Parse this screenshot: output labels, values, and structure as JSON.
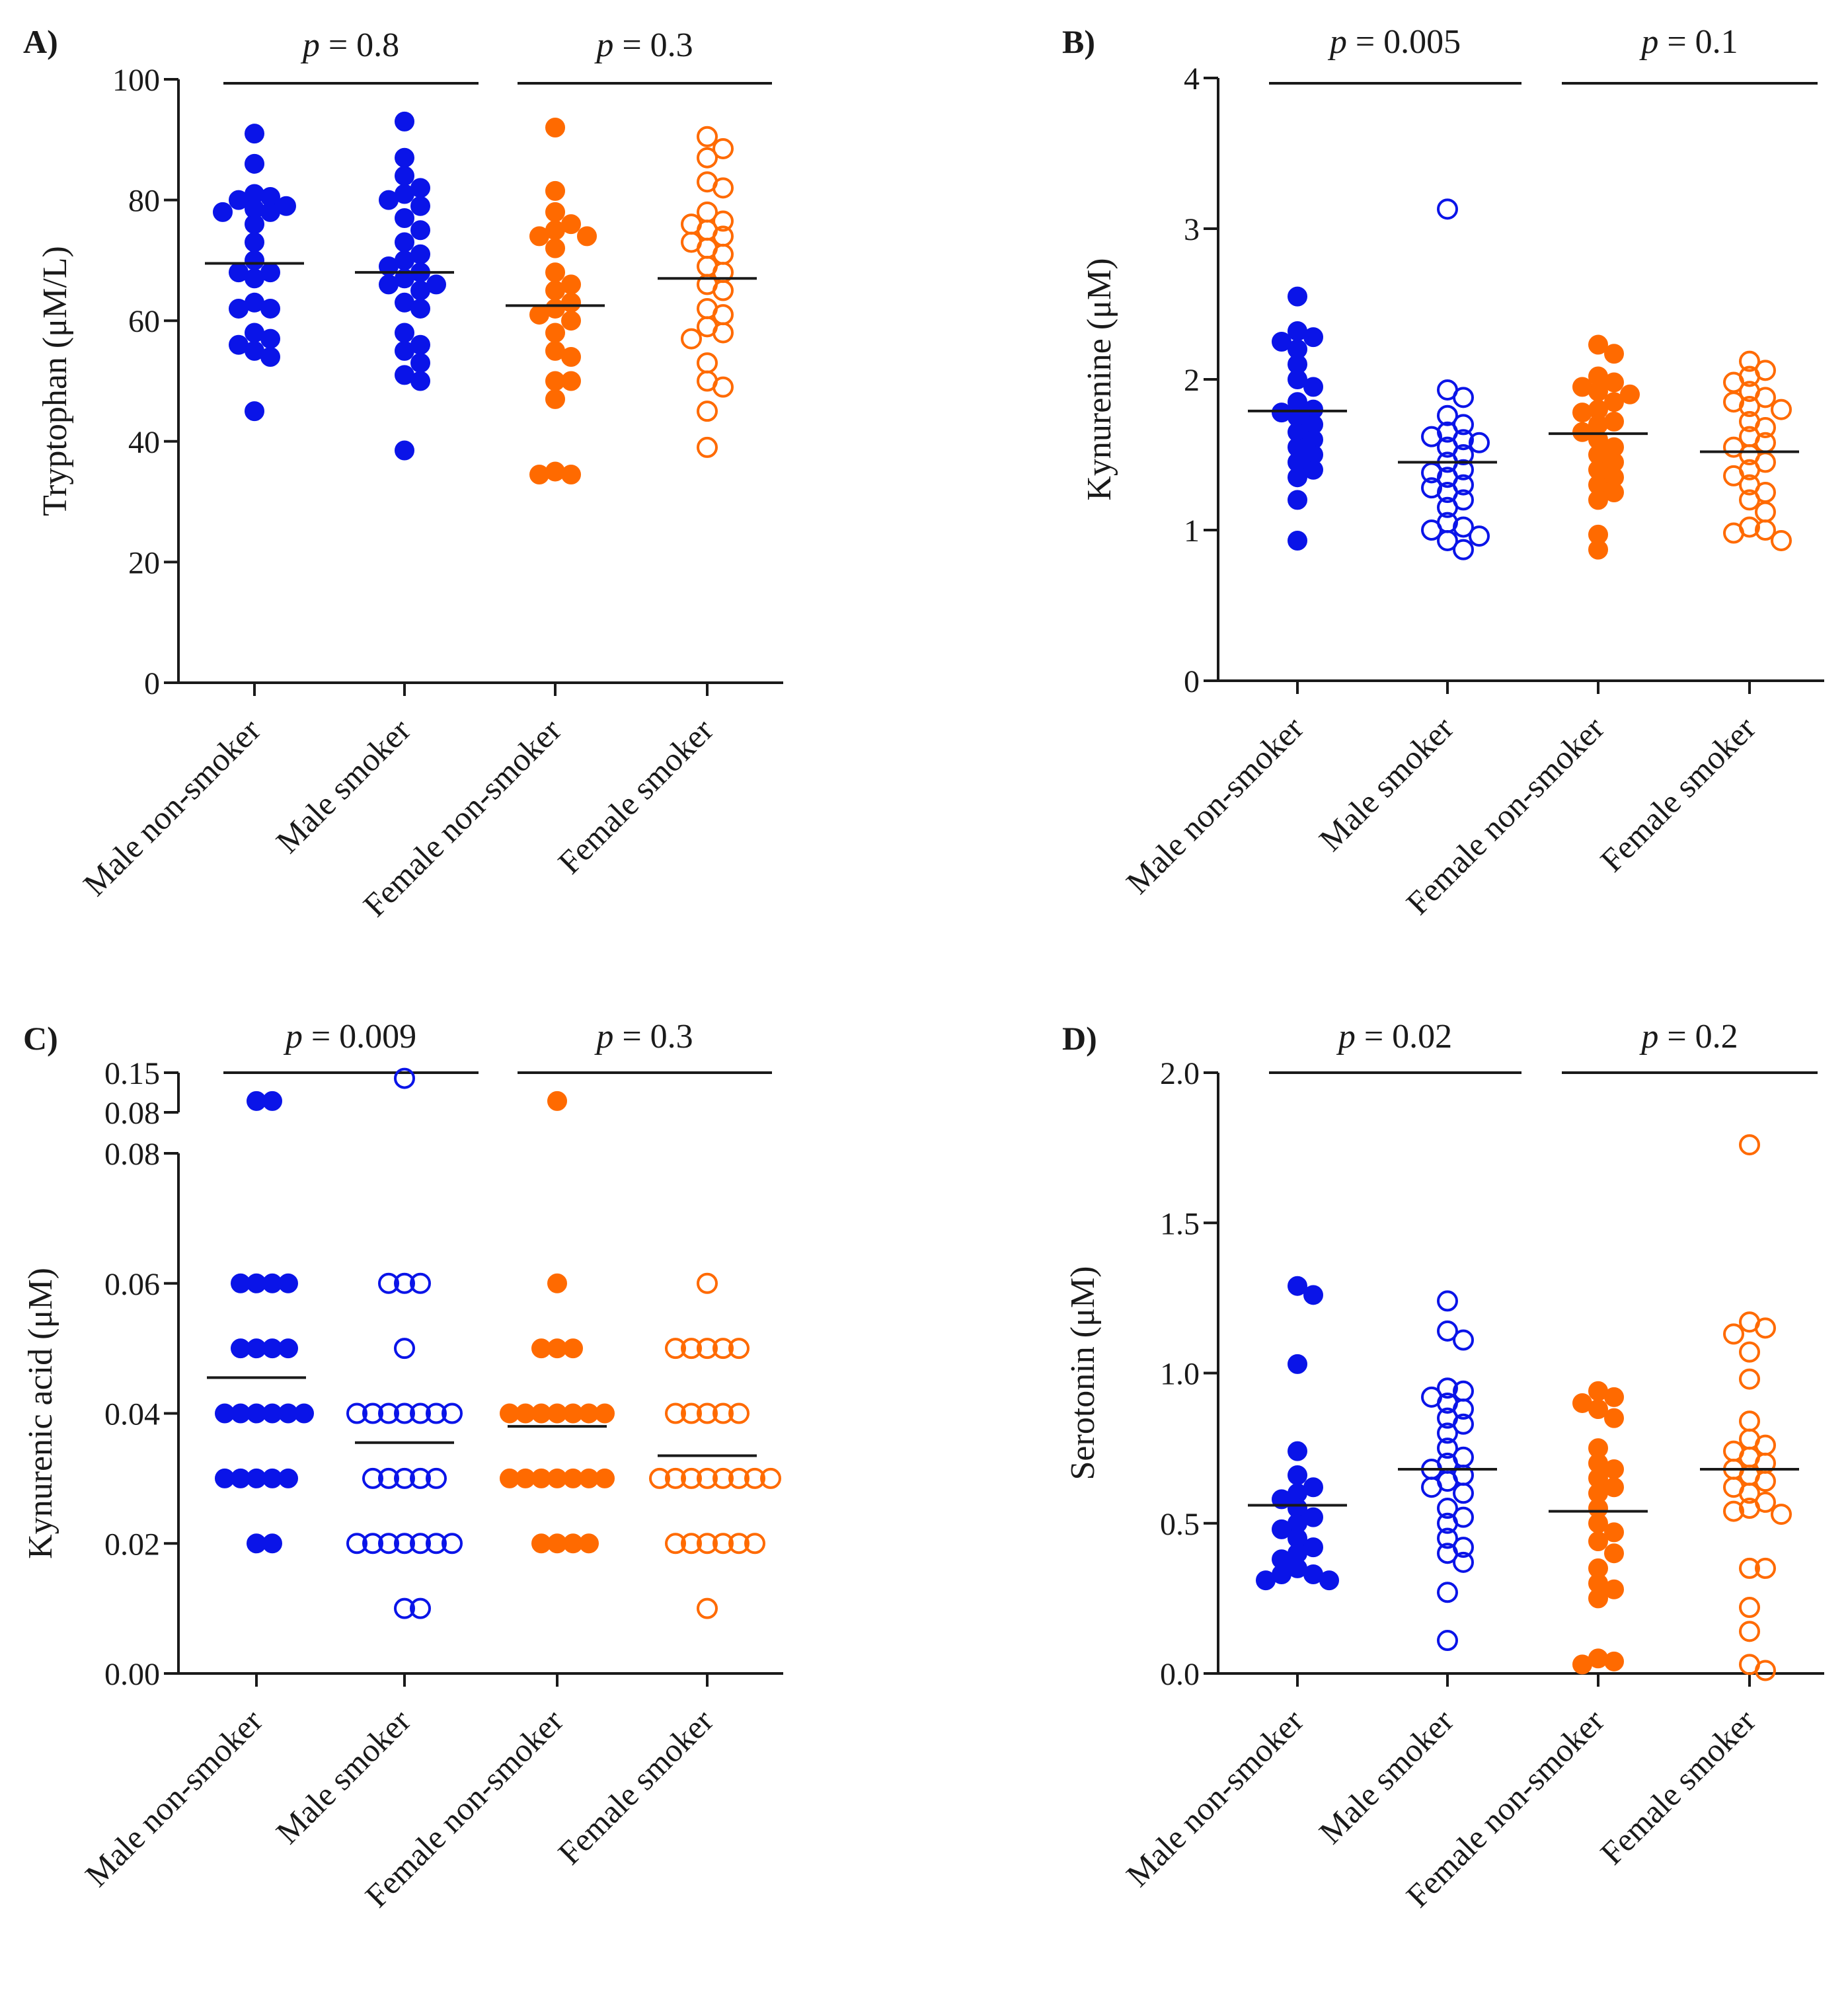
{
  "colors": {
    "blue": "#0a14e8",
    "orange": "#ff6a00",
    "black": "#1a1a1a"
  },
  "chart_data": [
    {
      "type": "scatter",
      "panel_label": "A)",
      "ylabel": "Tryptophan  (μM/L)",
      "ylim": [
        0,
        100
      ],
      "yticks": [
        0,
        20,
        40,
        60,
        80,
        100
      ],
      "ytick_labels": [
        "0",
        "20",
        "40",
        "60",
        "80",
        "100"
      ],
      "categories": [
        "Male non-smoker",
        "Male smoker",
        "Female non-smoker",
        "Female smoker"
      ],
      "comparisons": [
        {
          "p_symbol": "p",
          "p_rest": " = 0.8",
          "groups": [
            0,
            1
          ]
        },
        {
          "p_symbol": "p",
          "p_rest": " = 0.3",
          "groups": [
            2,
            3
          ]
        }
      ],
      "series": [
        {
          "name": "Male non-smoker",
          "color": "blue",
          "filled": true,
          "mean": 69.5,
          "points": [
            91,
            86,
            81,
            80.5,
            80,
            79,
            78.5,
            78,
            78,
            76,
            73,
            70,
            68,
            68,
            67,
            63,
            62,
            62,
            58,
            57,
            56,
            55,
            54,
            45
          ]
        },
        {
          "name": "Male smoker",
          "color": "blue",
          "filled": true,
          "mean": 68,
          "points": [
            93,
            87,
            84,
            82,
            81,
            80,
            79,
            77,
            75,
            73,
            71,
            70,
            69,
            68,
            67,
            66,
            66,
            65,
            63,
            62,
            58,
            56,
            55,
            53,
            51,
            50,
            38.5
          ]
        },
        {
          "name": "Female non-smoker",
          "color": "orange",
          "filled": true,
          "mean": 62.5,
          "points": [
            92,
            81.5,
            78,
            76,
            75,
            74,
            74,
            72,
            68,
            66,
            65,
            63,
            62,
            61,
            60,
            58,
            55,
            54,
            50,
            50,
            47,
            35,
            34.5,
            34.5
          ]
        },
        {
          "name": "Female smoker",
          "color": "orange",
          "filled": false,
          "mean": 67,
          "points": [
            90.5,
            88.5,
            87,
            83,
            82,
            78,
            76.5,
            76,
            75,
            74,
            73,
            72,
            71,
            69,
            68,
            66,
            65,
            62,
            61,
            59,
            58,
            57,
            53,
            50,
            49,
            45,
            39
          ]
        }
      ]
    },
    {
      "type": "scatter",
      "panel_label": "B)",
      "ylabel": "Kynurenine (μM)",
      "ylim": [
        0,
        4
      ],
      "yticks": [
        0,
        1,
        2,
        3,
        4
      ],
      "ytick_labels": [
        "0",
        "1",
        "2",
        "3",
        "4"
      ],
      "categories": [
        "Male non-smoker",
        "Male smoker",
        "Female non-smoker",
        "Female smoker"
      ],
      "comparisons": [
        {
          "p_symbol": "p",
          "p_rest": " = 0.005",
          "groups": [
            0,
            1
          ]
        },
        {
          "p_symbol": "p",
          "p_rest": " = 0.1",
          "groups": [
            2,
            3
          ]
        }
      ],
      "series": [
        {
          "name": "Male non-smoker",
          "color": "blue",
          "filled": true,
          "mean": 1.79,
          "points": [
            2.55,
            2.32,
            2.28,
            2.25,
            2.2,
            2.1,
            2.0,
            1.95,
            1.85,
            1.8,
            1.78,
            1.75,
            1.7,
            1.65,
            1.6,
            1.55,
            1.5,
            1.45,
            1.4,
            1.35,
            1.2,
            0.93
          ]
        },
        {
          "name": "Male smoker",
          "color": "blue",
          "filled": false,
          "mean": 1.45,
          "points": [
            3.13,
            1.93,
            1.88,
            1.76,
            1.7,
            1.65,
            1.62,
            1.6,
            1.58,
            1.55,
            1.5,
            1.45,
            1.4,
            1.38,
            1.35,
            1.3,
            1.28,
            1.25,
            1.2,
            1.15,
            1.05,
            1.02,
            1.0,
            0.96,
            0.93,
            0.87
          ]
        },
        {
          "name": "Female non-smoker",
          "color": "orange",
          "filled": true,
          "mean": 1.64,
          "points": [
            2.23,
            2.17,
            2.02,
            1.98,
            1.95,
            1.92,
            1.9,
            1.85,
            1.8,
            1.78,
            1.72,
            1.7,
            1.65,
            1.6,
            1.55,
            1.5,
            1.45,
            1.4,
            1.35,
            1.3,
            1.25,
            1.2,
            0.97,
            0.87
          ]
        },
        {
          "name": "Female smoker",
          "color": "orange",
          "filled": false,
          "mean": 1.52,
          "points": [
            2.12,
            2.06,
            2.02,
            1.98,
            1.92,
            1.88,
            1.85,
            1.82,
            1.8,
            1.72,
            1.68,
            1.62,
            1.58,
            1.55,
            1.5,
            1.45,
            1.4,
            1.36,
            1.3,
            1.25,
            1.2,
            1.12,
            1.02,
            1.0,
            0.98,
            0.93
          ]
        }
      ]
    },
    {
      "type": "scatter",
      "panel_label": "C)",
      "ylabel": "Kynurenic acid (μM)",
      "ylim": [
        0,
        0.08
      ],
      "axis_break": {
        "upper_range": [
          0.08,
          0.15
        ],
        "upper_tick_labels": [
          "0.08",
          "0.15"
        ]
      },
      "yticks": [
        0,
        0.02,
        0.04,
        0.06,
        0.08
      ],
      "ytick_labels": [
        "0.00",
        "0.02",
        "0.04",
        "0.06",
        "0.08"
      ],
      "categories": [
        "Male non-smoker",
        "Male smoker",
        "Female non-smoker",
        "Female smoker"
      ],
      "comparisons": [
        {
          "p_symbol": "p",
          "p_rest": " = 0.009",
          "groups": [
            0,
            1
          ]
        },
        {
          "p_symbol": "p",
          "p_rest": " = 0.3",
          "groups": [
            2,
            3
          ]
        }
      ],
      "series": [
        {
          "name": "Male non-smoker",
          "color": "blue",
          "filled": true,
          "mean": 0.0455,
          "points": [
            0.1,
            0.1,
            0.06,
            0.06,
            0.06,
            0.06,
            0.05,
            0.05,
            0.05,
            0.05,
            0.04,
            0.04,
            0.04,
            0.04,
            0.04,
            0.04,
            0.03,
            0.03,
            0.03,
            0.03,
            0.03,
            0.02,
            0.02
          ]
        },
        {
          "name": "Male smoker",
          "color": "blue",
          "filled": false,
          "mean": 0.0355,
          "points": [
            0.14,
            0.06,
            0.06,
            0.06,
            0.05,
            0.04,
            0.04,
            0.04,
            0.04,
            0.04,
            0.04,
            0.04,
            0.03,
            0.03,
            0.03,
            0.03,
            0.03,
            0.02,
            0.02,
            0.02,
            0.02,
            0.02,
            0.02,
            0.02,
            0.01,
            0.01
          ]
        },
        {
          "name": "Female non-smoker",
          "color": "orange",
          "filled": true,
          "mean": 0.038,
          "points": [
            0.1,
            0.06,
            0.05,
            0.05,
            0.05,
            0.04,
            0.04,
            0.04,
            0.04,
            0.04,
            0.04,
            0.04,
            0.03,
            0.03,
            0.03,
            0.03,
            0.03,
            0.03,
            0.03,
            0.02,
            0.02,
            0.02,
            0.02
          ]
        },
        {
          "name": "Female smoker",
          "color": "orange",
          "filled": false,
          "mean": 0.0335,
          "points": [
            0.06,
            0.05,
            0.05,
            0.05,
            0.05,
            0.05,
            0.04,
            0.04,
            0.04,
            0.04,
            0.04,
            0.03,
            0.03,
            0.03,
            0.03,
            0.03,
            0.03,
            0.03,
            0.03,
            0.02,
            0.02,
            0.02,
            0.02,
            0.02,
            0.02,
            0.01
          ]
        }
      ]
    },
    {
      "type": "scatter",
      "panel_label": "D)",
      "ylabel": "Serotonin (μM)",
      "ylim": [
        0,
        2
      ],
      "yticks": [
        0,
        0.5,
        1,
        1.5,
        2
      ],
      "ytick_labels": [
        "0.0",
        "0.5",
        "1.0",
        "1.5",
        "2.0"
      ],
      "categories": [
        "Male non-smoker",
        "Male smoker",
        "Female non-smoker",
        "Female smoker"
      ],
      "comparisons": [
        {
          "p_symbol": "p",
          "p_rest": " = 0.02",
          "groups": [
            0,
            1
          ]
        },
        {
          "p_symbol": "p",
          "p_rest": " = 0.2",
          "groups": [
            2,
            3
          ]
        }
      ],
      "series": [
        {
          "name": "Male non-smoker",
          "color": "blue",
          "filled": true,
          "mean": 0.56,
          "points": [
            1.29,
            1.26,
            1.03,
            0.74,
            0.66,
            0.62,
            0.6,
            0.58,
            0.55,
            0.52,
            0.5,
            0.48,
            0.45,
            0.42,
            0.4,
            0.38,
            0.35,
            0.33,
            0.33,
            0.31,
            0.31
          ]
        },
        {
          "name": "Male smoker",
          "color": "blue",
          "filled": false,
          "mean": 0.68,
          "points": [
            1.24,
            1.14,
            1.11,
            0.95,
            0.94,
            0.92,
            0.9,
            0.88,
            0.85,
            0.83,
            0.8,
            0.75,
            0.72,
            0.7,
            0.68,
            0.66,
            0.64,
            0.62,
            0.6,
            0.55,
            0.52,
            0.5,
            0.45,
            0.42,
            0.4,
            0.37,
            0.27,
            0.11
          ]
        },
        {
          "name": "Female non-smoker",
          "color": "orange",
          "filled": true,
          "mean": 0.54,
          "points": [
            0.94,
            0.92,
            0.9,
            0.88,
            0.85,
            0.75,
            0.7,
            0.68,
            0.65,
            0.62,
            0.6,
            0.55,
            0.5,
            0.47,
            0.44,
            0.4,
            0.35,
            0.3,
            0.28,
            0.25,
            0.05,
            0.04,
            0.03
          ]
        },
        {
          "name": "Female smoker",
          "color": "orange",
          "filled": false,
          "mean": 0.68,
          "points": [
            1.76,
            1.17,
            1.15,
            1.13,
            1.07,
            0.98,
            0.84,
            0.78,
            0.76,
            0.74,
            0.72,
            0.7,
            0.68,
            0.66,
            0.64,
            0.62,
            0.6,
            0.57,
            0.55,
            0.54,
            0.53,
            0.35,
            0.35,
            0.22,
            0.14,
            0.03,
            0.01
          ]
        }
      ]
    }
  ]
}
